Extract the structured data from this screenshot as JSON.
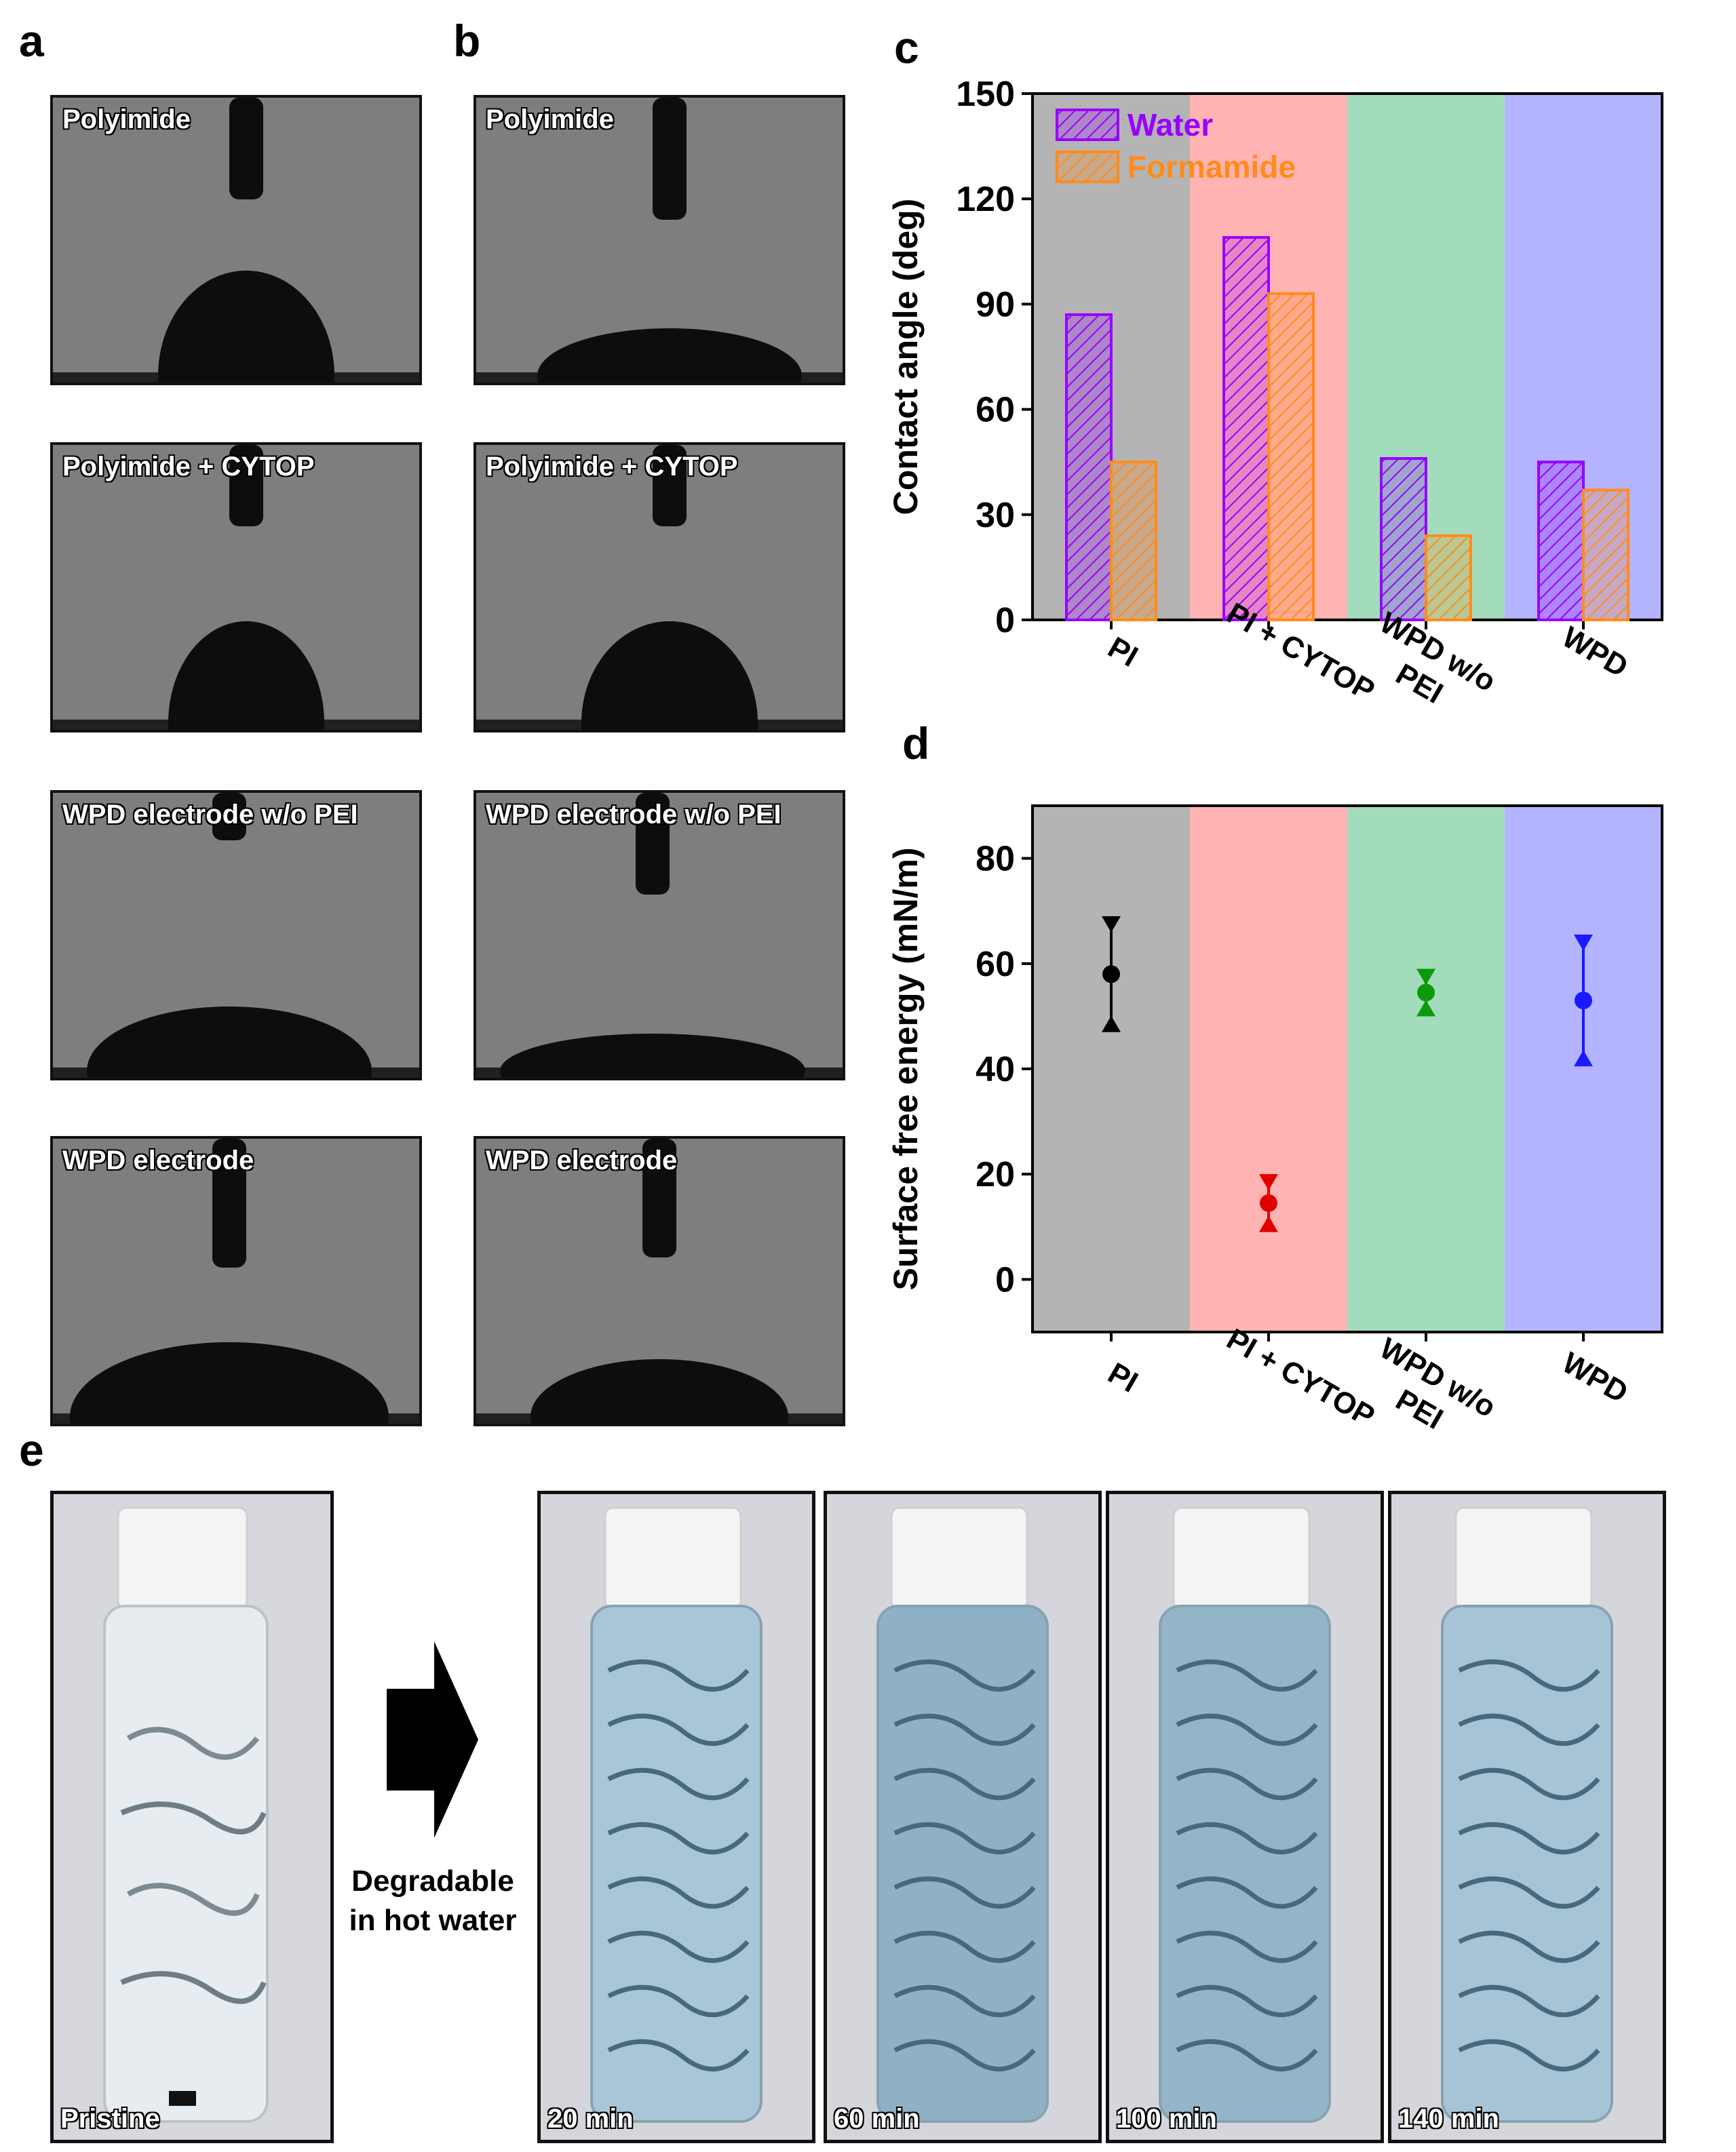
{
  "panel_letters": {
    "a": "a",
    "b": "b",
    "c": "c",
    "d": "d",
    "e": "e"
  },
  "contact_angle_images": {
    "column_a": [
      "Polyimide",
      "Polyimide + CYTOP",
      "WPD electrode w/o PEI",
      "WPD electrode"
    ],
    "column_b": [
      "Polyimide",
      "Polyimide + CYTOP",
      "WPD electrode w/o PEI",
      "WPD electrode"
    ]
  },
  "chart_data": [
    {
      "type": "bar",
      "panel": "c",
      "categories": [
        "PI",
        "PI + CYTOP",
        "WPD w/o\nPEI",
        "WPD"
      ],
      "series": [
        {
          "name": "Water",
          "values": [
            87,
            109,
            46,
            45
          ],
          "color": "#9900ff"
        },
        {
          "name": "Formamide",
          "values": [
            45,
            93,
            24,
            37
          ],
          "color": "#ff8c1a"
        }
      ],
      "ylabel": "Contact angle (deg)",
      "ylim": [
        0,
        150
      ],
      "yticks": [
        0,
        30,
        60,
        90,
        120,
        150
      ],
      "background_bands": [
        "#b4b4b4",
        "#ffb3b3",
        "#a3dcbc",
        "#b3b3ff"
      ],
      "legend": "top-left"
    },
    {
      "type": "scatter",
      "panel": "d",
      "categories": [
        "PI",
        "PI + CYTOP",
        "WPD w/o\nPEI",
        "WPD"
      ],
      "mean": [
        58,
        14.5,
        54.5,
        53
      ],
      "upper": [
        68.5,
        19.5,
        58.5,
        65
      ],
      "lower": [
        47.5,
        9.5,
        50.5,
        41
      ],
      "colors": [
        "#000000",
        "#e00000",
        "#0a9a0a",
        "#1a1aff"
      ],
      "ylabel": "Surface free energy (mN/m)",
      "ylim": [
        -10,
        90
      ],
      "yticks": [
        0,
        20,
        40,
        60,
        80
      ],
      "background_bands": [
        "#b4b4b4",
        "#ffb3b3",
        "#a3dcbc",
        "#b3b3ff"
      ]
    }
  ],
  "degradation": {
    "arrow_text_line1": "Degradable",
    "arrow_text_line2": "in hot water",
    "photos": [
      "Pristine",
      "20 min",
      "60 min",
      "100 min",
      "140 min"
    ]
  }
}
